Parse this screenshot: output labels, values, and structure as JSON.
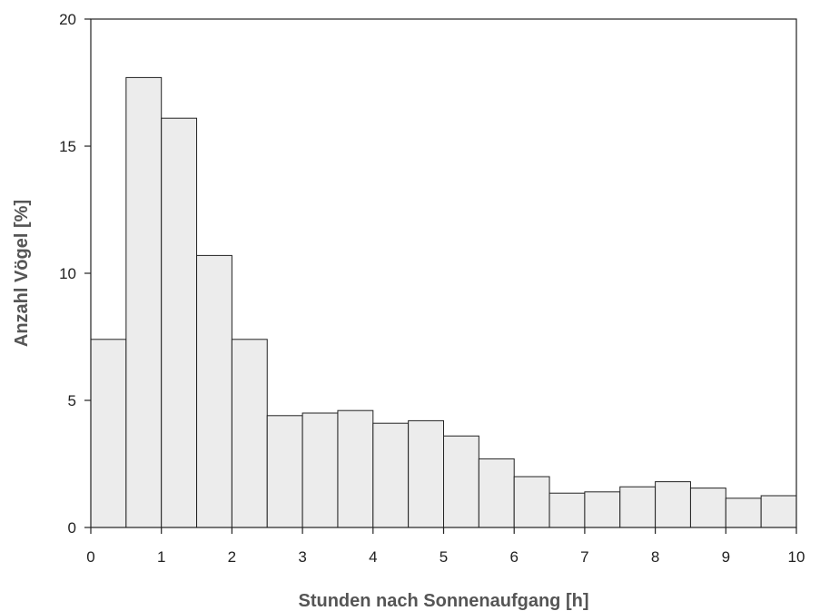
{
  "chart_data": {
    "type": "bar",
    "title": "",
    "xlabel": "Stunden nach Sonnenaufgang [h]",
    "ylabel": "Anzahl Vögel [%]",
    "xlim": [
      0,
      10
    ],
    "ylim": [
      0,
      20
    ],
    "bin_width": 0.5,
    "x": [
      0.25,
      0.75,
      1.25,
      1.75,
      2.25,
      2.75,
      3.25,
      3.75,
      4.25,
      4.75,
      5.25,
      5.75,
      6.25,
      6.75,
      7.25,
      7.75,
      8.25,
      8.75,
      9.25,
      9.75
    ],
    "values": [
      7.4,
      17.7,
      16.1,
      10.7,
      7.4,
      4.4,
      4.5,
      4.6,
      4.1,
      4.2,
      3.6,
      2.7,
      2.0,
      1.35,
      1.4,
      1.6,
      1.8,
      1.55,
      1.15,
      1.25
    ],
    "x_ticks": [
      "0",
      "1",
      "2",
      "3",
      "4",
      "5",
      "6",
      "7",
      "8",
      "9",
      "10"
    ],
    "y_ticks": [
      "0",
      "5",
      "10",
      "15",
      "20"
    ],
    "grid": false,
    "legend": "none",
    "bar_fill": "#ececec",
    "bar_stroke": "#222222",
    "axis_color": "#222222"
  }
}
